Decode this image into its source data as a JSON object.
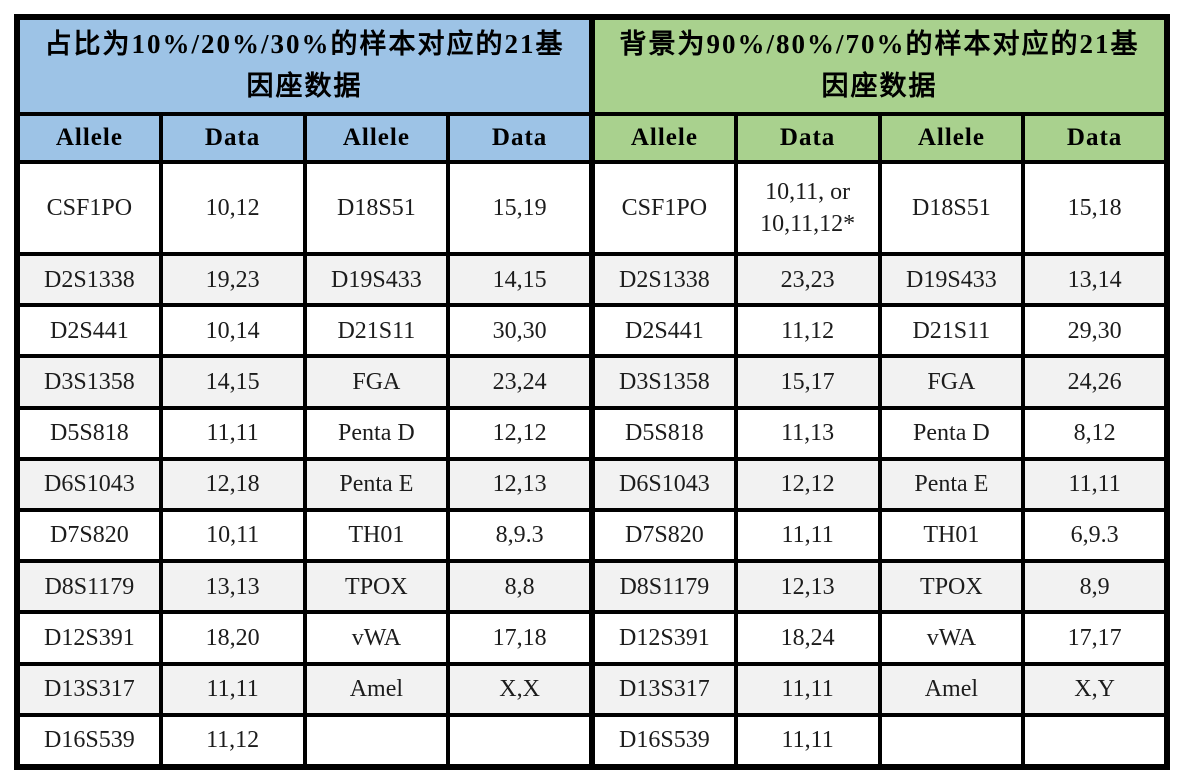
{
  "colors": {
    "left_header": "#9dc3e6",
    "right_header": "#a9d18e",
    "alt_row": "#f2f2f2",
    "border": "#000000"
  },
  "table": {
    "left": {
      "title": "占比为10%/20%/30%的样本对应的21基\n因座数据",
      "columns": [
        "Allele",
        "Data",
        "Allele",
        "Data"
      ],
      "rows": [
        [
          "CSF1PO",
          "10,12",
          "D18S51",
          "15,19"
        ],
        [
          "D2S1338",
          "19,23",
          "D19S433",
          "14,15"
        ],
        [
          "D2S441",
          "10,14",
          "D21S11",
          "30,30"
        ],
        [
          "D3S1358",
          "14,15",
          "FGA",
          "23,24"
        ],
        [
          "D5S818",
          "11,11",
          "Penta D",
          "12,12"
        ],
        [
          "D6S1043",
          "12,18",
          "Penta E",
          "12,13"
        ],
        [
          "D7S820",
          "10,11",
          "TH01",
          "8,9.3"
        ],
        [
          "D8S1179",
          "13,13",
          "TPOX",
          "8,8"
        ],
        [
          "D12S391",
          "18,20",
          "vWA",
          "17,18"
        ],
        [
          "D13S317",
          "11,11",
          "Amel",
          "X,X"
        ],
        [
          "D16S539",
          "11,12",
          "",
          ""
        ]
      ]
    },
    "right": {
      "title": "背景为90%/80%/70%的样本对应的21基\n因座数据",
      "columns": [
        "Allele",
        "Data",
        "Allele",
        "Data"
      ],
      "rows": [
        [
          "CSF1PO",
          "10,11, or\n10,11,12*",
          "D18S51",
          "15,18"
        ],
        [
          "D2S1338",
          "23,23",
          "D19S433",
          "13,14"
        ],
        [
          "D2S441",
          "11,12",
          "D21S11",
          "29,30"
        ],
        [
          "D3S1358",
          "15,17",
          "FGA",
          "24,26"
        ],
        [
          "D5S818",
          "11,13",
          "Penta D",
          "8,12"
        ],
        [
          "D6S1043",
          "12,12",
          "Penta E",
          "11,11"
        ],
        [
          "D7S820",
          "11,11",
          "TH01",
          "6,9.3"
        ],
        [
          "D8S1179",
          "12,13",
          "TPOX",
          "8,9"
        ],
        [
          "D12S391",
          "18,24",
          "vWA",
          "17,17"
        ],
        [
          "D13S317",
          "11,11",
          "Amel",
          "X,Y"
        ],
        [
          "D16S539",
          "11,11",
          "",
          ""
        ]
      ]
    }
  }
}
